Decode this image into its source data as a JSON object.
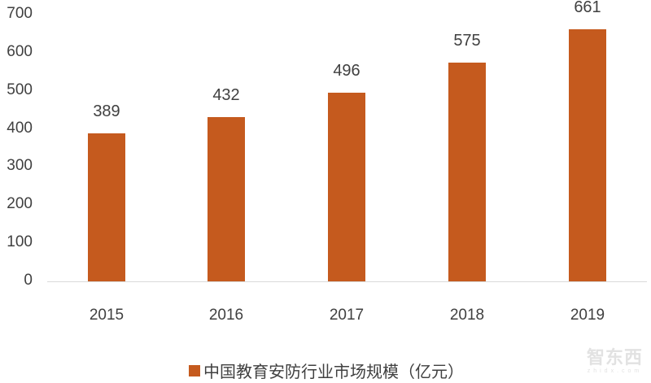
{
  "chart_data": {
    "type": "bar",
    "title": "",
    "xlabel": "",
    "ylabel": "",
    "categories": [
      "2015",
      "2016",
      "2017",
      "2018",
      "2019"
    ],
    "series": [
      {
        "name": "中国教育安防行业市场规模（亿元）",
        "values": [
          389,
          432,
          496,
          575,
          661
        ],
        "color": "#c55a1e"
      }
    ],
    "ylim": [
      0,
      700
    ],
    "yticks": [
      0,
      100,
      200,
      300,
      400,
      500,
      600,
      700
    ],
    "grid": false,
    "legend_position": "bottom",
    "data_labels": true
  },
  "legend": {
    "label": "中国教育安防行业市场规模（亿元）",
    "color": "#c55a1e"
  },
  "watermark": {
    "main": "智东西",
    "sub": "zhidx.com"
  }
}
